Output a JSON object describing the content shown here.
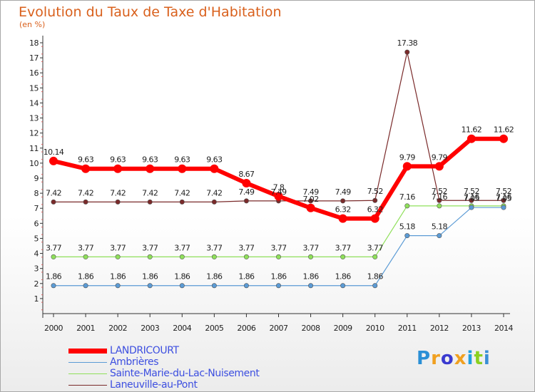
{
  "chart_data": {
    "type": "line",
    "title": "Evolution du Taux de Taxe d'Habitation",
    "subtitle": "(en %)",
    "x": [
      "2000",
      "2001",
      "2002",
      "2003",
      "2004",
      "2005",
      "2006",
      "2007",
      "2008",
      "2009",
      "2010",
      "2011",
      "2012",
      "2013",
      "2014"
    ],
    "ylim": [
      0,
      18
    ],
    "yticks": [
      1,
      2,
      3,
      4,
      5,
      6,
      7,
      8,
      9,
      10,
      11,
      12,
      13,
      14,
      15,
      16,
      17,
      18
    ],
    "grid": false,
    "legend_position": "bottom-left",
    "series": [
      {
        "name": "LANDRICOURT",
        "color": "#ff0000",
        "width": 6,
        "values": [
          10.14,
          9.63,
          9.63,
          9.63,
          9.63,
          9.63,
          8.67,
          7.8,
          7.02,
          6.32,
          6.32,
          9.79,
          9.79,
          11.62,
          11.62
        ],
        "labels": [
          "10.14",
          "9.63",
          "9.63",
          "9.63",
          "9.63",
          "9.63",
          "8.67",
          "7.8",
          "7.02",
          "6.32",
          "6.32",
          "9.79",
          "9.79",
          "11.62",
          "11.62"
        ]
      },
      {
        "name": "Ambrières",
        "color": "#5b9bd5",
        "width": 1.2,
        "values": [
          1.86,
          1.86,
          1.86,
          1.86,
          1.86,
          1.86,
          1.86,
          1.86,
          1.86,
          1.86,
          1.86,
          5.18,
          5.18,
          7.05,
          7.05
        ],
        "labels": [
          "1.86",
          "1.86",
          "1.86",
          "1.86",
          "1.86",
          "1.86",
          "1.86",
          "1.86",
          "1.86",
          "1.86",
          "1.86",
          "5.18",
          "5.18",
          "7.05",
          "7.05"
        ]
      },
      {
        "name": "Sainte-Marie-du-Lac-Nuisement",
        "color": "#8fe05a",
        "width": 1.2,
        "values": [
          3.77,
          3.77,
          3.77,
          3.77,
          3.77,
          3.77,
          3.77,
          3.77,
          3.77,
          3.77,
          3.77,
          7.16,
          7.16,
          7.16,
          7.16
        ],
        "labels": [
          "3.77",
          "3.77",
          "3.77",
          "3.77",
          "3.77",
          "3.77",
          "3.77",
          "3.77",
          "3.77",
          "3.77",
          "3.77",
          "7.16",
          "7.16",
          "7.16",
          "7.16"
        ]
      },
      {
        "name": "Laneuville-au-Pont",
        "color": "#7a2a2a",
        "width": 1.2,
        "values": [
          7.42,
          7.42,
          7.42,
          7.42,
          7.42,
          7.42,
          7.49,
          7.49,
          7.49,
          7.49,
          7.52,
          17.38,
          7.52,
          7.52,
          7.52
        ],
        "labels": [
          "7.42",
          "7.42",
          "7.42",
          "7.42",
          "7.42",
          "7.42",
          "7.49",
          "7.49",
          "7.49",
          "7.49",
          "7.52",
          "17.38",
          "7.52",
          "7.52",
          "7.52"
        ]
      }
    ]
  },
  "logo_text": "Proxiti"
}
